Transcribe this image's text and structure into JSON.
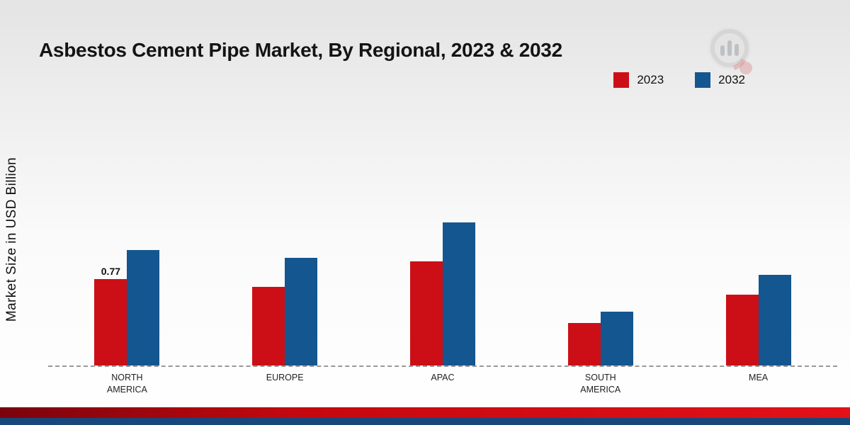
{
  "title": "Asbestos Cement Pipe Market, By Regional, 2023 & 2032",
  "ylabel": "Market Size in USD Billion",
  "legend": [
    {
      "label": "2023",
      "color": "#cc0f16"
    },
    {
      "label": "2032",
      "color": "#14568f"
    }
  ],
  "chart_data": {
    "type": "bar",
    "title": "Asbestos Cement Pipe Market, By Regional, 2023 & 2032",
    "xlabel": "",
    "ylabel": "Market Size in USD Billion",
    "categories": [
      "NORTH AMERICA",
      "EUROPE",
      "APAC",
      "SOUTH AMERICA",
      "MEA"
    ],
    "series": [
      {
        "name": "2023",
        "color": "#cc0f16",
        "values": [
          0.77,
          0.7,
          0.93,
          0.38,
          0.63
        ]
      },
      {
        "name": "2032",
        "color": "#14568f",
        "values": [
          1.03,
          0.96,
          1.28,
          0.48,
          0.81
        ]
      }
    ],
    "ylim": [
      0,
      2
    ],
    "grid": false,
    "legend_position": "top-right",
    "baseline_style": "dashed",
    "data_labels": [
      {
        "series": 0,
        "category": 0,
        "text": "0.77"
      }
    ]
  },
  "footer": {
    "red_strip_color": "#c40810",
    "blue_strip_color": "#17477b"
  }
}
